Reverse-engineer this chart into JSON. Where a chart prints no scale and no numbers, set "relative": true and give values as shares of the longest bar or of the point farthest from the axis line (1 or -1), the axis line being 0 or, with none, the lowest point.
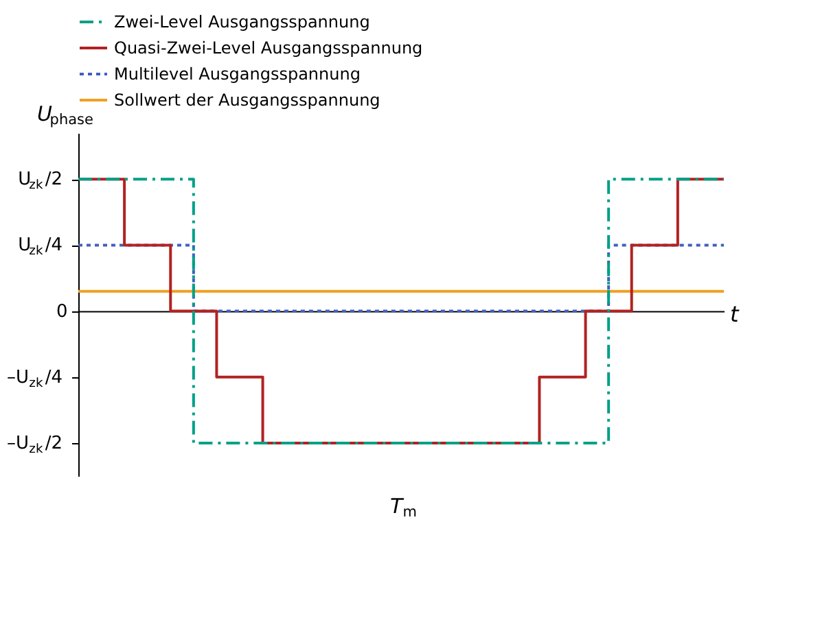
{
  "chart_data": {
    "type": "step",
    "xlabel": "t",
    "ylabel": "U$_{phase}$",
    "relative": true,
    "categories": [
      null,
      null,
      null,
      null,
      null,
      null,
      null,
      null,
      null,
      null,
      null,
      null,
      null,
      null,
      null,
      null,
      null,
      null,
      null,
      null,
      null,
      null,
      null,
      null,
      null,
      null,
      null,
      null,
      null
    ],
    "series": [
      {
        "name": "Zwei-Level Ausgangsspannung",
        "color": "#00a087",
        "line_style": "dashed",
        "values": [
          1,
          1,
          1,
          1,
          1,
          -1,
          -1,
          -1,
          -1,
          -1,
          -1,
          -1,
          -1,
          -1,
          -1,
          -1,
          -1,
          -1,
          -1,
          -1,
          -1,
          -1,
          -1,
          1,
          1,
          1,
          1,
          1,
          1
        ]
      },
      {
        "name": "Quasi-Zwei-Level Ausgangsspannung",
        "color": "#b22222",
        "line_style": "solid",
        "values": [
          1,
          1,
          0.5,
          0.5,
          0,
          0,
          -0.5,
          -0.5,
          -1,
          -1,
          -1,
          -1,
          -1,
          -1,
          -1,
          -1,
          -1,
          -1,
          -1,
          -1,
          -0.5,
          -0.5,
          0,
          0,
          0.5,
          0.5,
          1,
          1,
          1
        ]
      },
      {
        "name": "Multilevel Ausgangsspannung",
        "color": "#4060c0",
        "line_style": "dotted",
        "values": [
          0.5,
          0.5,
          0.5,
          0.5,
          0.5,
          0,
          0,
          0,
          0,
          0,
          0,
          0,
          0,
          0,
          0,
          0,
          0,
          0,
          0,
          0,
          0,
          0,
          0,
          0.5,
          0.5,
          0.5,
          0.5,
          0.5,
          0.5
        ]
      },
      {
        "name": "Sollwert der Ausgangsspannung",
        "color": "#f0a020",
        "line_style": "solid",
        "values": [
          0.15,
          0.15,
          0.15,
          0.15,
          0.15,
          0.15,
          0.15,
          0.15,
          0.15,
          0.15,
          0.15,
          0.15,
          0.15,
          0.15,
          0.15,
          0.15,
          0.15,
          0.15,
          0.15,
          0.15,
          0.15,
          0.15,
          0.15,
          0.15,
          0.15,
          0.15,
          0.15,
          0.15,
          0.15
        ]
      }
    ],
    "grid": false,
    "legend": "top",
    "annotations": [
      "U$_{zk}$/2",
      "U$_{zk}$/4",
      "0",
      "–U$_{zk}$/4",
      "–U$_{zk}$/2",
      "T$_{m}$"
    ]
  }
}
